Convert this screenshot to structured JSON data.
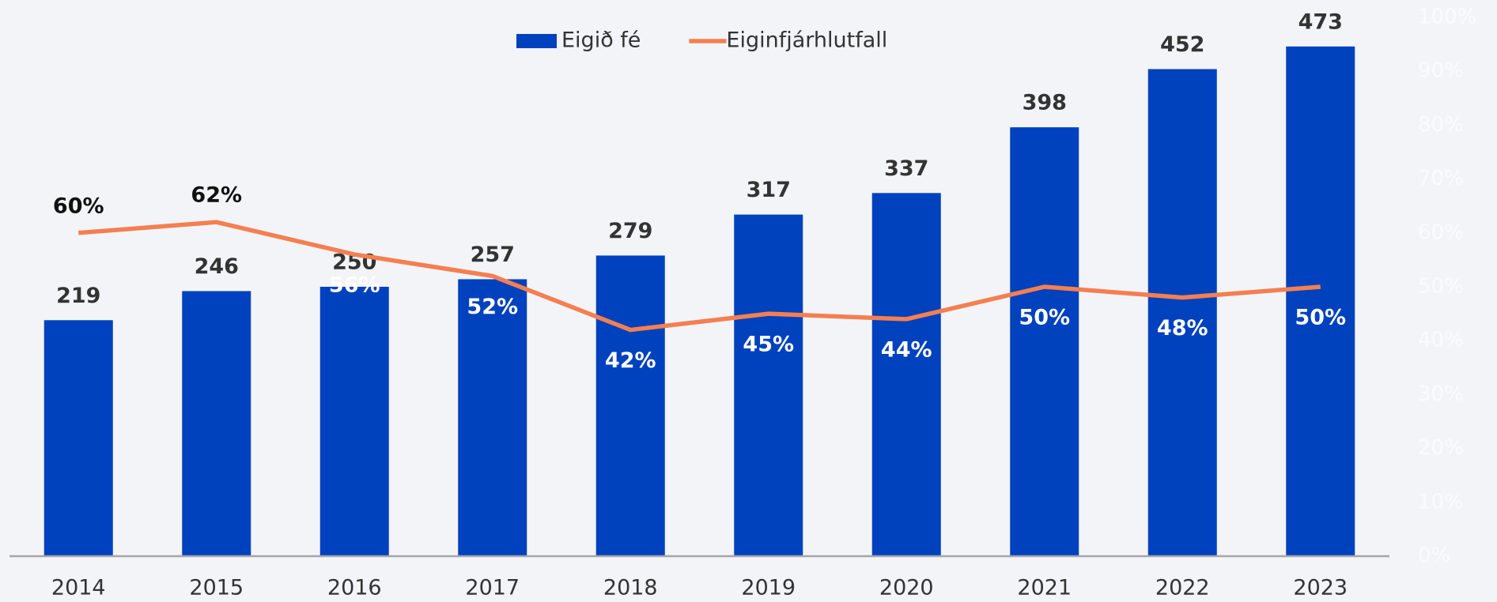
{
  "chart_data": {
    "type": "bar",
    "categories": [
      "2014",
      "2015",
      "2016",
      "2017",
      "2018",
      "2019",
      "2020",
      "2021",
      "2022",
      "2023"
    ],
    "series": [
      {
        "name": "Eigið fé",
        "type": "bar",
        "color": "#0041be",
        "axis": "y",
        "values": [
          219,
          246,
          250,
          257,
          279,
          317,
          337,
          398,
          452,
          473
        ]
      },
      {
        "name": "Eiginfjárhlutfall",
        "type": "line",
        "color": "#f47f50",
        "axis": "y2",
        "values": [
          60,
          62,
          56,
          52,
          42,
          45,
          44,
          50,
          48,
          50
        ],
        "value_labels": [
          "60%",
          "62%",
          "56%",
          "52%",
          "42%",
          "45%",
          "44%",
          "50%",
          "48%",
          "50%"
        ]
      }
    ],
    "ylim": [
      0,
      500
    ],
    "y2lim": [
      0,
      100
    ],
    "y2ticks": [
      {
        "value": 0,
        "label": "0%"
      },
      {
        "value": 10,
        "label": "10%"
      },
      {
        "value": 20,
        "label": "20%"
      },
      {
        "value": 30,
        "label": "30%"
      },
      {
        "value": 40,
        "label": "40%"
      },
      {
        "value": 50,
        "label": "50%"
      },
      {
        "value": 60,
        "label": "60%"
      },
      {
        "value": 70,
        "label": "70%"
      },
      {
        "value": 80,
        "label": "80%"
      },
      {
        "value": 90,
        "label": "90%"
      },
      {
        "value": 100,
        "label": "100%"
      }
    ],
    "legend": "top"
  }
}
